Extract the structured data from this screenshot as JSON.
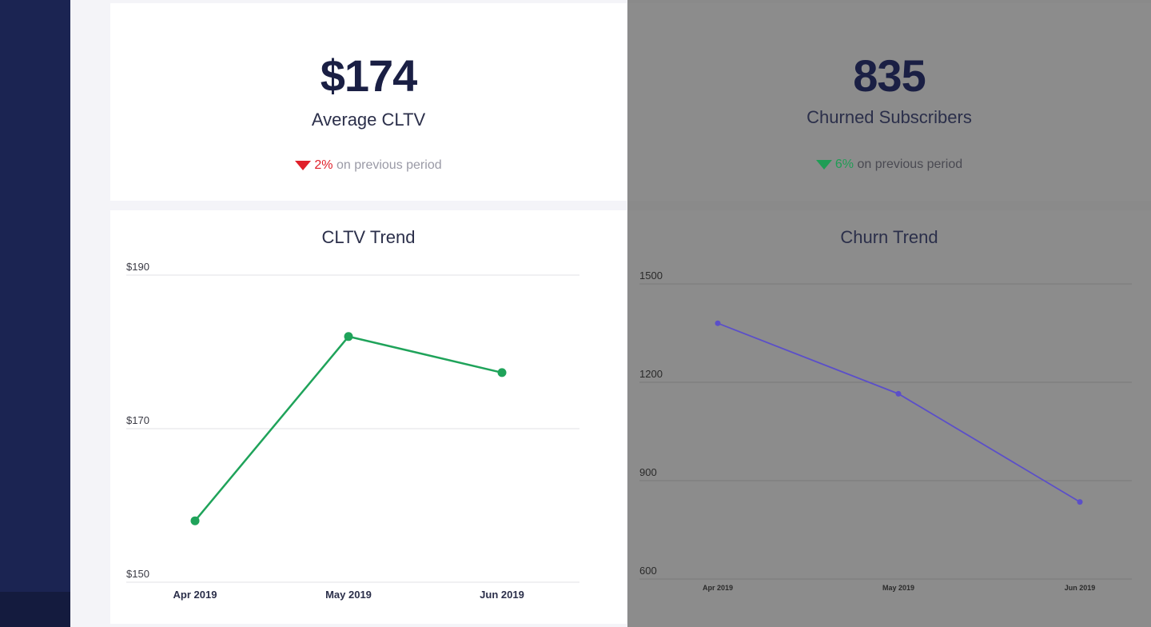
{
  "kpis": [
    {
      "value": "$174",
      "label": "Average CLTV",
      "change_pct": "2%",
      "change_text": "on previous period",
      "direction": "down",
      "color": "#e0202a"
    },
    {
      "value": "835",
      "label": "Churned Subscribers",
      "change_pct": "6%",
      "change_text": "on previous period",
      "direction": "down",
      "color": "#1f9d55"
    }
  ],
  "chart_data": [
    {
      "type": "line",
      "title": "CLTV Trend",
      "categories": [
        "Apr 2019",
        "May 2019",
        "Jun 2019"
      ],
      "series": [
        {
          "values": [
            158,
            182,
            177.3
          ],
          "color": "#1fa35a"
        }
      ],
      "ylim": [
        150,
        190
      ],
      "yticks": [
        150,
        170,
        190
      ],
      "ytick_labels": [
        "$150",
        "$170",
        "$190"
      ],
      "grid": true
    },
    {
      "type": "line",
      "title": "Churn Trend",
      "categories": [
        "Apr 2019",
        "May 2019",
        "Jun 2019"
      ],
      "series": [
        {
          "values": [
            1380,
            1165,
            835
          ],
          "color": "#5b4fc9"
        }
      ],
      "ylim": [
        600,
        1500
      ],
      "yticks": [
        600,
        900,
        1200,
        1500
      ],
      "ytick_labels": [
        "600",
        "900",
        "1200",
        "1500"
      ],
      "grid": true
    }
  ]
}
